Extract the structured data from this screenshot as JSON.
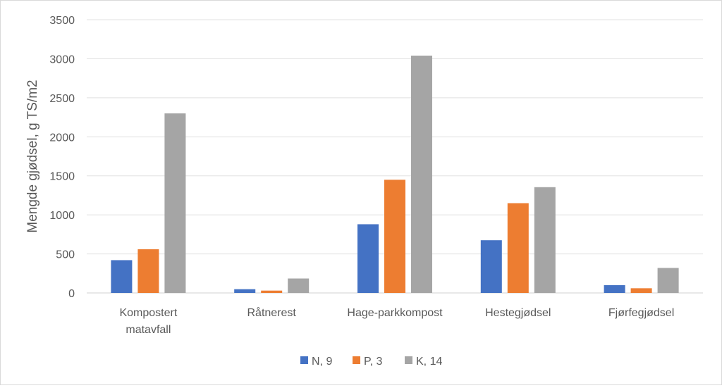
{
  "chart_data": {
    "type": "bar",
    "title": "",
    "xlabel": "",
    "ylabel": "Mengde gjødsel, g TS/m2",
    "ylim": [
      0,
      3500
    ],
    "yticks": [
      0,
      500,
      1000,
      1500,
      2000,
      2500,
      3000,
      3500
    ],
    "grid": true,
    "legend_position": "bottom",
    "categories": [
      [
        "Kompostert",
        "matavfall"
      ],
      [
        "Råtnerest"
      ],
      [
        "Hage-parkkompost"
      ],
      [
        "Hestegjødsel"
      ],
      [
        "Fjørfegjødsel"
      ]
    ],
    "series": [
      {
        "name": "N, 9",
        "color": "#4472c4",
        "values": [
          420,
          48,
          880,
          675,
          100
        ]
      },
      {
        "name": "P, 3",
        "color": "#ed7d31",
        "values": [
          560,
          30,
          1450,
          1150,
          60
        ]
      },
      {
        "name": "K, 14",
        "color": "#a5a5a5",
        "values": [
          2300,
          185,
          3040,
          1355,
          320
        ]
      }
    ]
  }
}
